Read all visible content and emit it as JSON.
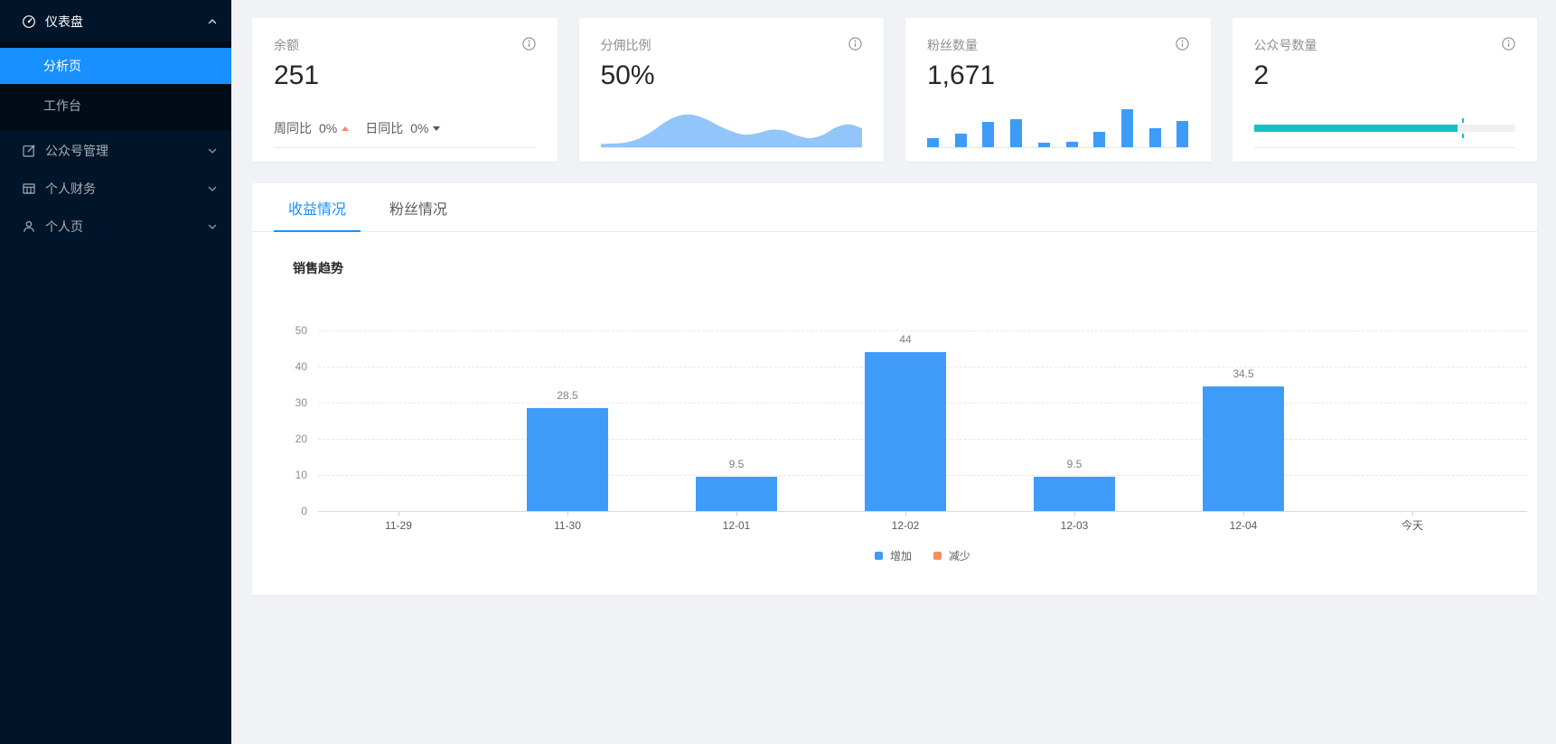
{
  "colors": {
    "accent": "#1890ff",
    "sidebar_bg": "#001529",
    "submenu_bg": "#000c17",
    "bar_blue": "#3e9cf8",
    "area_blue": "#92c5f9",
    "teal": "#13c2c2",
    "trend_up": "#f5875f",
    "trend_down": "#50555c"
  },
  "sidebar": {
    "items": [
      {
        "icon": "dashboard-icon",
        "label": "仪表盘",
        "state": "expanded",
        "children": [
          {
            "label": "分析页",
            "selected": true
          },
          {
            "label": "工作台",
            "selected": false
          }
        ]
      },
      {
        "icon": "form-icon",
        "label": "公众号管理",
        "state": "collapsed"
      },
      {
        "icon": "table-icon",
        "label": "个人财务",
        "state": "collapsed"
      },
      {
        "icon": "user-icon",
        "label": "个人页",
        "state": "collapsed"
      }
    ]
  },
  "stat_cards": [
    {
      "label": "余额",
      "value": "251",
      "info_icon": "info-circle-icon",
      "footer": [
        {
          "label": "周同比",
          "value": "0%",
          "trend": "up"
        },
        {
          "label": "日同比",
          "value": "0%",
          "trend": "down"
        }
      ]
    },
    {
      "label": "分佣比例",
      "value": "50%",
      "info_icon": "info-circle-icon"
    },
    {
      "label": "粉丝数量",
      "value": "1,671",
      "info_icon": "info-circle-icon"
    },
    {
      "label": "公众号数量",
      "value": "2",
      "info_icon": "info-circle-icon",
      "progress": {
        "percent": 78,
        "target": 80
      }
    }
  ],
  "tabs": [
    {
      "label": "收益情况",
      "active": true
    },
    {
      "label": "粉丝情况",
      "active": false
    }
  ],
  "chart_data": [
    {
      "type": "bar",
      "title": "销售趋势",
      "categories": [
        "11-29",
        "11-30",
        "12-01",
        "12-02",
        "12-03",
        "12-04",
        "今天"
      ],
      "series": [
        {
          "name": "增加",
          "color": "#3e9cf8",
          "values": [
            0,
            28.5,
            9.5,
            44,
            9.5,
            34.5,
            0
          ]
        },
        {
          "name": "减少",
          "color": "#f98c5e",
          "values": [
            0,
            0,
            0,
            0,
            0,
            0,
            0
          ]
        }
      ],
      "ylim": [
        0,
        50
      ],
      "yticks": [
        0,
        10,
        20,
        30,
        40,
        50
      ],
      "grid": "horizontal-dashed",
      "legend_position": "bottom",
      "bar_value_labels": true
    },
    {
      "type": "area",
      "name": "commission-mini-trend",
      "color": "#92c5f9",
      "values": [
        8,
        9,
        12,
        22,
        40,
        62,
        76,
        78,
        68,
        52,
        38,
        30,
        34,
        42,
        40,
        28,
        22,
        30,
        48,
        55,
        45
      ]
    },
    {
      "type": "bar",
      "name": "fans-mini-trend",
      "color": "#3e9cf8",
      "values": [
        22,
        32,
        60,
        68,
        10,
        14,
        38,
        92,
        46,
        62
      ]
    }
  ]
}
